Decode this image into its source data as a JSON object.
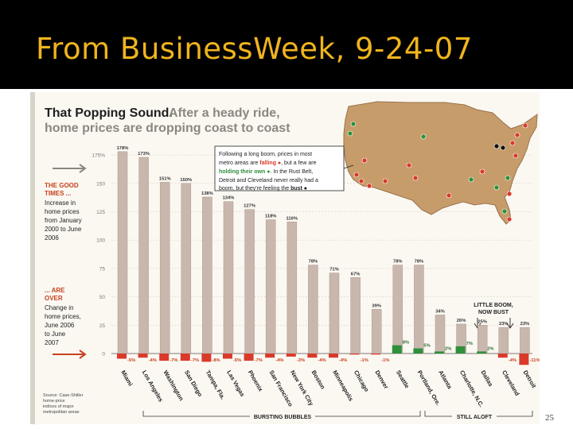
{
  "slide": {
    "title": "From BusinessWeek, 9-24-07",
    "page_number": "25"
  },
  "chart_data": {
    "type": "bar",
    "title": "That Popping Sound.",
    "subtitle_lines": [
      "After a heady ride,",
      "home prices are dropping coast to coast"
    ],
    "title_lines": [
      "That Popping Sound.",
      "home prices are dropping coast to coast"
    ],
    "left_top_label": [
      "THE GOOD",
      "TIMES ..."
    ],
    "left_top_text": [
      "Increase in",
      "home prices",
      "from January",
      "2000 to June",
      "2006"
    ],
    "left_bottom_label": [
      "... ARE",
      "OVER"
    ],
    "left_bottom_text": [
      "Change in",
      "home prices,",
      "June 2006",
      "to June",
      "2007"
    ],
    "source_lines": [
      "Source: Case-Shiller",
      "home-price",
      "indices of major",
      "metropolitan areas"
    ],
    "callout_lines": [
      "Following a long boom, prices in most",
      "metro areas are falling",
      ", but a few are",
      "holding their own",
      ". In the Rust Belt,",
      "Detroit and Cleveland never really had a",
      "boom, but they're feeling the bust",
      "."
    ],
    "callout": {
      "line1": "Following a long boom, prices in most",
      "line2a": "metro areas are ",
      "line2b": "falling",
      "line2c": ", but a few are",
      "line3a": "holding their own",
      "line3b": ". In the Rust Belt,",
      "line4": "Detroit and Cleveland never really had a",
      "line5a": "boom, but they're feeling the ",
      "line5b": "bust"
    },
    "little_boom_label": [
      "LITTLE BOOM,",
      "NOW BUST"
    ],
    "group_labels": [
      "BURSTING BUBBLES",
      "STILL ALOFT"
    ],
    "y_ticks": [
      0,
      25,
      50,
      75,
      100,
      125,
      150,
      175
    ],
    "ylim": [
      0,
      180
    ],
    "categories": [
      "Miami",
      "Los Angeles",
      "Washington",
      "San Diego",
      "Tampa, Fla.",
      "Las Vegas",
      "Phoenix",
      "San Francisco",
      "New York City",
      "Boston",
      "Minneapolis",
      "Chicago",
      "Denver",
      "Seattle",
      "Portland, Ore.",
      "Atlanta",
      "Charlotte, N.C.",
      "Dallas",
      "Cleveland",
      "Detroit"
    ],
    "series": [
      {
        "values": [
          178,
          173,
          151,
          150,
          138,
          134,
          127,
          118,
          116,
          78,
          71,
          67,
          39,
          78,
          78,
          34,
          26,
          25,
          23,
          23
        ],
        "labels": [
          "178%",
          "173%",
          "151%",
          "150%",
          "138%",
          "134%",
          "127%",
          "118%",
          "116%",
          "78%",
          "71%",
          "67%",
          "39%",
          "78%",
          "78%",
          "34%",
          "26%",
          "25%",
          "23%",
          "23%"
        ]
      },
      {
        "values": [
          -5,
          -4,
          -7,
          -7,
          -8,
          -5,
          -7,
          -4,
          -3,
          -4,
          -4,
          -1,
          -1,
          8,
          5,
          2,
          7,
          2,
          -4,
          -11
        ],
        "labels": [
          "-5%",
          "-4%",
          "-7%",
          "-7%",
          "-8%",
          "-5%",
          "-7%",
          "-4%",
          "-3%",
          "-4%",
          "-4%",
          "-1%",
          "-1%",
          "8%",
          "5%",
          "2%",
          "7%",
          "2%",
          "-4%",
          "-11%"
        ]
      }
    ],
    "colors": {
      "increase_bar": "#c9b7ae",
      "falling": "#d93a2a",
      "holding": "#2f8f3a",
      "bust": "#111111",
      "accent_text": "#c8421f",
      "map_land": "#c79c6b"
    },
    "map": {
      "markers": [
        {
          "status": "holding"
        },
        {
          "status": "holding"
        },
        {
          "status": "falling"
        },
        {
          "status": "falling"
        },
        {
          "status": "falling"
        },
        {
          "status": "falling"
        },
        {
          "status": "falling"
        },
        {
          "status": "falling"
        },
        {
          "status": "holding"
        },
        {
          "status": "falling"
        },
        {
          "status": "falling"
        },
        {
          "status": "holding"
        },
        {
          "status": "bust"
        },
        {
          "status": "bust"
        },
        {
          "status": "falling"
        },
        {
          "status": "falling"
        },
        {
          "status": "falling"
        },
        {
          "status": "falling"
        },
        {
          "status": "holding"
        },
        {
          "status": "holding"
        },
        {
          "status": "falling"
        },
        {
          "status": "holding"
        },
        {
          "status": "falling"
        },
        {
          "status": "falling"
        }
      ]
    }
  }
}
